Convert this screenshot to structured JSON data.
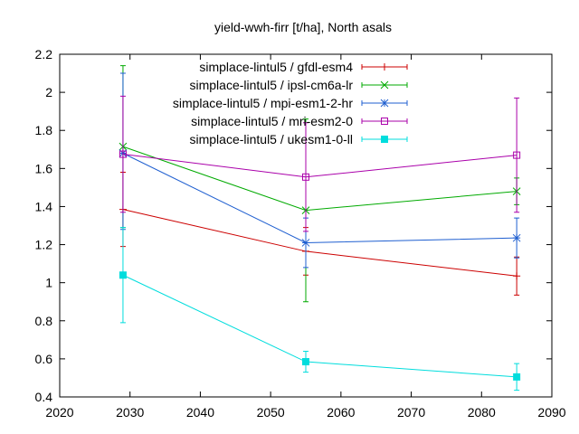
{
  "chart_data": {
    "type": "line",
    "title": "yield-wwh-firr [t/ha], North asals",
    "xlabel": "",
    "ylabel": "",
    "xlim": [
      2020,
      2090
    ],
    "ylim": [
      0.4,
      2.2
    ],
    "xticks": [
      2020,
      2030,
      2040,
      2050,
      2060,
      2070,
      2080,
      2090
    ],
    "yticks": [
      0.4,
      0.6,
      0.8,
      1,
      1.2,
      1.4,
      1.6,
      1.8,
      2,
      2.2
    ],
    "ytick_labels": [
      "0.4",
      "0.6",
      "0.8",
      "1",
      "1.2",
      "1.4",
      "1.6",
      "1.8",
      "2",
      "2.2"
    ],
    "grid": false,
    "legend_position": "top-right",
    "x": [
      2029,
      2055,
      2085
    ],
    "series": [
      {
        "name": "simplace-lintul5 / gfdl-esm4",
        "color": "#cc0000",
        "marker": "plus",
        "values": [
          1.385,
          1.165,
          1.035
        ],
        "err_low": [
          1.19,
          1.04,
          0.935
        ],
        "err_high": [
          1.58,
          1.29,
          1.135
        ]
      },
      {
        "name": "simplace-lintul5 / ipsl-cm6a-lr",
        "color": "#00aa00",
        "marker": "cross",
        "values": [
          1.715,
          1.38,
          1.48
        ],
        "err_low": [
          1.29,
          0.9,
          1.41
        ],
        "err_high": [
          2.14,
          1.86,
          1.55
        ]
      },
      {
        "name": "simplace-lintul5 / mpi-esm1-2-hr",
        "color": "#1f5fd0",
        "marker": "star",
        "values": [
          1.68,
          1.21,
          1.235
        ],
        "err_low": [
          1.28,
          1.08,
          1.13
        ],
        "err_high": [
          2.1,
          1.34,
          1.34
        ]
      },
      {
        "name": "simplace-lintul5 / mri-esm2-0",
        "color": "#aa00aa",
        "marker": "square-open",
        "values": [
          1.675,
          1.555,
          1.67
        ],
        "err_low": [
          1.37,
          1.27,
          1.37
        ],
        "err_high": [
          1.98,
          1.84,
          1.97
        ]
      },
      {
        "name": "simplace-lintul5 / ukesm1-0-ll",
        "color": "#00dddd",
        "marker": "square-filled",
        "values": [
          1.04,
          0.585,
          0.505
        ],
        "err_low": [
          0.79,
          0.53,
          0.435
        ],
        "err_high": [
          1.29,
          0.64,
          0.575
        ]
      }
    ]
  }
}
